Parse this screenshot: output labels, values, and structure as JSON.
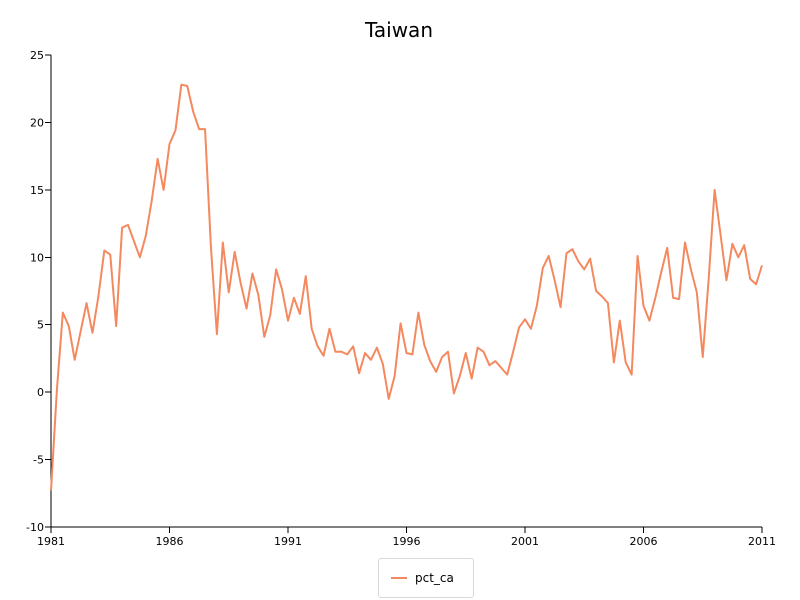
{
  "chart_data": {
    "type": "line",
    "title": "Taiwan",
    "xlabel": "",
    "ylabel": "",
    "xlim": [
      1981,
      2011
    ],
    "ylim": [
      -10,
      25
    ],
    "x_ticks": [
      "1981",
      "1986",
      "1991",
      "1996",
      "2001",
      "2006",
      "2011"
    ],
    "y_ticks": [
      "-10",
      "-5",
      "0",
      "5",
      "10",
      "15",
      "20",
      "25"
    ],
    "grid": false,
    "legend_position": "bottom-center",
    "series": [
      {
        "name": "pct_ca",
        "color": "#f4895f",
        "x": [
          1981.0,
          1981.25,
          1981.5,
          1981.75,
          1982.0,
          1982.25,
          1982.5,
          1982.75,
          1983.0,
          1983.25,
          1983.5,
          1983.75,
          1984.0,
          1984.25,
          1984.5,
          1984.75,
          1985.0,
          1985.25,
          1985.5,
          1985.75,
          1986.0,
          1986.25,
          1986.5,
          1986.75,
          1987.0,
          1987.25,
          1987.5,
          1987.75,
          1988.0,
          1988.25,
          1988.5,
          1988.75,
          1989.0,
          1989.25,
          1989.5,
          1989.75,
          1990.0,
          1990.25,
          1990.5,
          1990.75,
          1991.0,
          1991.25,
          1991.5,
          1991.75,
          1992.0,
          1992.25,
          1992.5,
          1992.75,
          1993.0,
          1993.25,
          1993.5,
          1993.75,
          1994.0,
          1994.25,
          1994.5,
          1994.75,
          1995.0,
          1995.25,
          1995.5,
          1995.75,
          1996.0,
          1996.25,
          1996.5,
          1996.75,
          1997.0,
          1997.25,
          1997.5,
          1997.75,
          1998.0,
          1998.25,
          1998.5,
          1998.75,
          1999.0,
          1999.25,
          1999.5,
          1999.75,
          2000.0,
          2000.25,
          2000.5,
          2000.75,
          2001.0,
          2001.25,
          2001.5,
          2001.75,
          2002.0,
          2002.25,
          2002.5,
          2002.75,
          2003.0,
          2003.25,
          2003.5,
          2003.75,
          2004.0,
          2004.25,
          2004.5,
          2004.75,
          2005.0,
          2005.25,
          2005.5,
          2005.75,
          2006.0,
          2006.25,
          2006.5,
          2006.75,
          2007.0,
          2007.25,
          2007.5,
          2007.75,
          2008.0,
          2008.25,
          2008.5,
          2008.75,
          2009.0,
          2009.25,
          2009.5,
          2009.75,
          2010.0,
          2010.25,
          2010.5,
          2010.75,
          2011.0
        ],
        "y": [
          -7.3,
          0.2,
          5.9,
          4.9,
          2.4,
          4.5,
          6.6,
          4.4,
          7.1,
          10.5,
          10.2,
          4.9,
          12.2,
          12.4,
          11.2,
          10.0,
          11.6,
          14.2,
          17.3,
          15.0,
          18.4,
          19.4,
          22.8,
          22.7,
          20.8,
          19.5,
          19.5,
          10.7,
          4.3,
          11.1,
          7.4,
          10.4,
          8.1,
          6.2,
          8.8,
          7.2,
          4.1,
          5.7,
          9.1,
          7.6,
          5.3,
          7.0,
          5.8,
          8.6,
          4.7,
          3.4,
          2.7,
          4.7,
          3.0,
          3.0,
          2.8,
          3.4,
          1.4,
          2.9,
          2.4,
          3.3,
          2.1,
          -0.5,
          1.2,
          5.1,
          2.9,
          2.8,
          5.9,
          3.5,
          2.3,
          1.5,
          2.6,
          3.0,
          -0.1,
          1.2,
          2.9,
          1.0,
          3.3,
          3.0,
          2.0,
          2.3,
          1.8,
          1.3,
          3.0,
          4.8,
          5.4,
          4.7,
          6.4,
          9.2,
          10.1,
          8.3,
          6.3,
          10.3,
          10.6,
          9.7,
          9.1,
          9.9,
          7.5,
          7.1,
          6.6,
          2.2,
          5.3,
          2.2,
          1.3,
          10.1,
          6.4,
          5.3,
          7.0,
          8.9,
          10.7,
          7.0,
          6.9,
          11.1,
          9.1,
          7.4,
          2.6,
          8.4,
          15.0,
          11.7,
          8.3,
          11.0,
          10.0,
          10.9,
          8.4,
          8.0,
          9.4
        ]
      }
    ]
  }
}
